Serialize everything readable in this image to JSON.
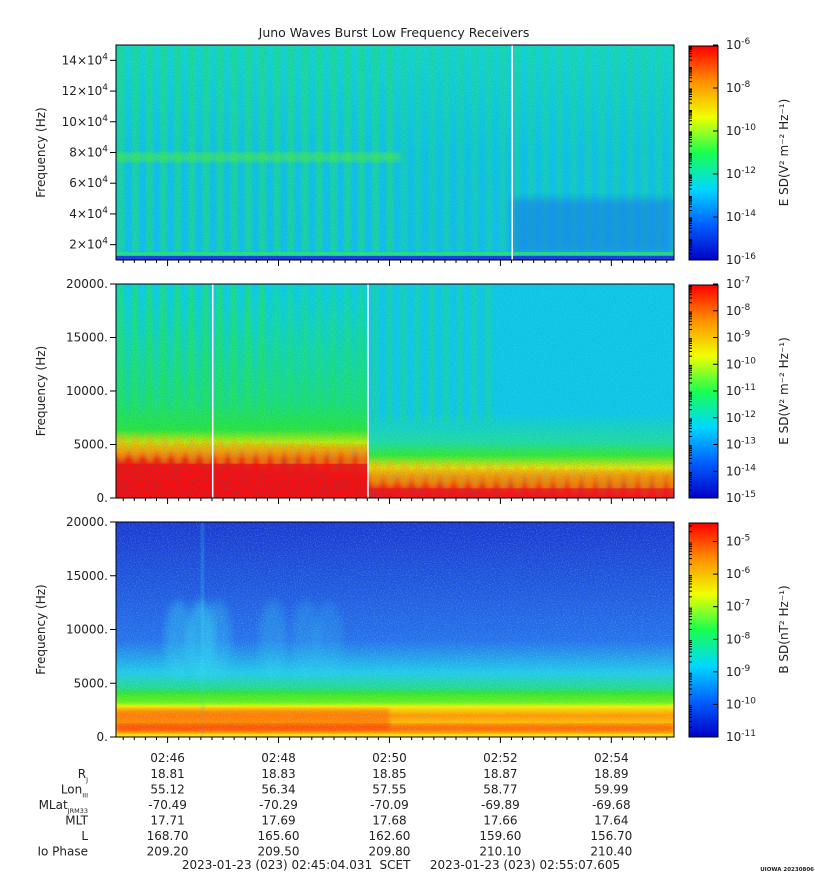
{
  "title": "Juno Waves Burst Low Frequency Receivers",
  "colors": {
    "colormap": [
      "#0000c8",
      "#0060ff",
      "#00d8ff",
      "#18ff50",
      "#f0ff00",
      "#ff9000",
      "#ff0000"
    ],
    "axis": "#000000"
  },
  "chart_data": [
    {
      "type": "heatmap",
      "panel": "top",
      "ylabel": "Frequency (Hz)",
      "ylim": [
        10000,
        150000
      ],
      "yticks": [
        20000,
        40000,
        60000,
        80000,
        100000,
        120000,
        140000
      ],
      "ytick_labels": [
        {
          "base": "2×10",
          "exp": "4"
        },
        {
          "base": "4×10",
          "exp": "4"
        },
        {
          "base": "6×10",
          "exp": "4"
        },
        {
          "base": "8×10",
          "exp": "4"
        },
        {
          "base": "10×10",
          "exp": "4"
        },
        {
          "base": "12×10",
          "exp": "4"
        },
        {
          "base": "14×10",
          "exp": "4"
        }
      ],
      "colorbar_label": "E SD(V² m⁻² Hz⁻¹)",
      "colorbar_scale": "log",
      "colorbar_range": [
        -16,
        -6
      ],
      "colorbar_ticks": [
        {
          "base": "10",
          "exp": "-6"
        },
        {
          "base": "10",
          "exp": "-8"
        },
        {
          "base": "10",
          "exp": "-10"
        },
        {
          "base": "10",
          "exp": "-12"
        },
        {
          "base": "10",
          "exp": "-14"
        },
        {
          "base": "10",
          "exp": "-16"
        }
      ],
      "dominant_level": 0.4,
      "data_gaps_min": [
        52.2
      ]
    },
    {
      "type": "heatmap",
      "panel": "middle",
      "ylabel": "Frequency (Hz)",
      "ylim": [
        0,
        20000
      ],
      "yticks": [
        0,
        5000,
        10000,
        15000,
        20000
      ],
      "ytick_labels": [
        "0.",
        "5000.",
        "10000.",
        "15000.",
        "20000."
      ],
      "colorbar_label": "E SD(V² m⁻² Hz⁻¹)",
      "colorbar_scale": "log",
      "colorbar_range": [
        -15,
        -7
      ],
      "colorbar_ticks": [
        {
          "base": "10",
          "exp": "-7"
        },
        {
          "base": "10",
          "exp": "-8"
        },
        {
          "base": "10",
          "exp": "-9"
        },
        {
          "base": "10",
          "exp": "-10"
        },
        {
          "base": "10",
          "exp": "-11"
        },
        {
          "base": "10",
          "exp": "-12"
        },
        {
          "base": "10",
          "exp": "-13"
        },
        {
          "base": "10",
          "exp": "-14"
        },
        {
          "base": "10",
          "exp": "-15"
        }
      ],
      "data_gaps_min": [
        46.8,
        49.6
      ]
    },
    {
      "type": "heatmap",
      "panel": "bottom",
      "ylabel": "Frequency (Hz)",
      "ylim": [
        0,
        20000
      ],
      "yticks": [
        0,
        5000,
        10000,
        15000,
        20000
      ],
      "ytick_labels": [
        "0.",
        "5000.",
        "10000.",
        "15000.",
        "20000."
      ],
      "colorbar_label": "B SD(nT² Hz⁻¹)",
      "colorbar_scale": "log",
      "colorbar_range": [
        -11,
        -4.4
      ],
      "colorbar_ticks": [
        {
          "base": "10",
          "exp": "-5"
        },
        {
          "base": "10",
          "exp": "-6"
        },
        {
          "base": "10",
          "exp": "-7"
        },
        {
          "base": "10",
          "exp": "-8"
        },
        {
          "base": "10",
          "exp": "-9"
        },
        {
          "base": "10",
          "exp": "-10"
        },
        {
          "base": "10",
          "exp": "-11"
        }
      ]
    }
  ],
  "x_axis": {
    "tick_labels": [
      "02:46",
      "02:48",
      "02:50",
      "02:52",
      "02:54"
    ],
    "tick_minutes": [
      46,
      48,
      50,
      52,
      54
    ],
    "range_minutes": [
      45.07,
      55.13
    ]
  },
  "ephemeris": {
    "rows": [
      {
        "label": "R",
        "sub": "J",
        "values": [
          "18.81",
          "18.83",
          "18.85",
          "18.87",
          "18.89"
        ]
      },
      {
        "label": "Lon",
        "sub": "III",
        "values": [
          "55.12",
          "56.34",
          "57.55",
          "58.77",
          "59.99"
        ]
      },
      {
        "label": "MLat",
        "sub": "JRM33",
        "values": [
          "-70.49",
          "-70.29",
          "-70.09",
          "-69.89",
          "-69.68"
        ]
      },
      {
        "label": "MLT",
        "sub": "",
        "values": [
          "17.71",
          "17.69",
          "17.68",
          "17.66",
          "17.64"
        ]
      },
      {
        "label": "L",
        "sub": "",
        "values": [
          "168.70",
          "165.60",
          "162.60",
          "159.60",
          "156.70"
        ]
      },
      {
        "label": "Io Phase",
        "sub": "",
        "values": [
          "209.20",
          "209.50",
          "209.80",
          "210.10",
          "210.40"
        ]
      }
    ]
  },
  "footer": {
    "start": "2023-01-23 (023) 02:45:04.031",
    "scet": "SCET",
    "end": "2023-01-23 (023) 02:55:07.605"
  },
  "stamp": "UIOWA 20230806"
}
